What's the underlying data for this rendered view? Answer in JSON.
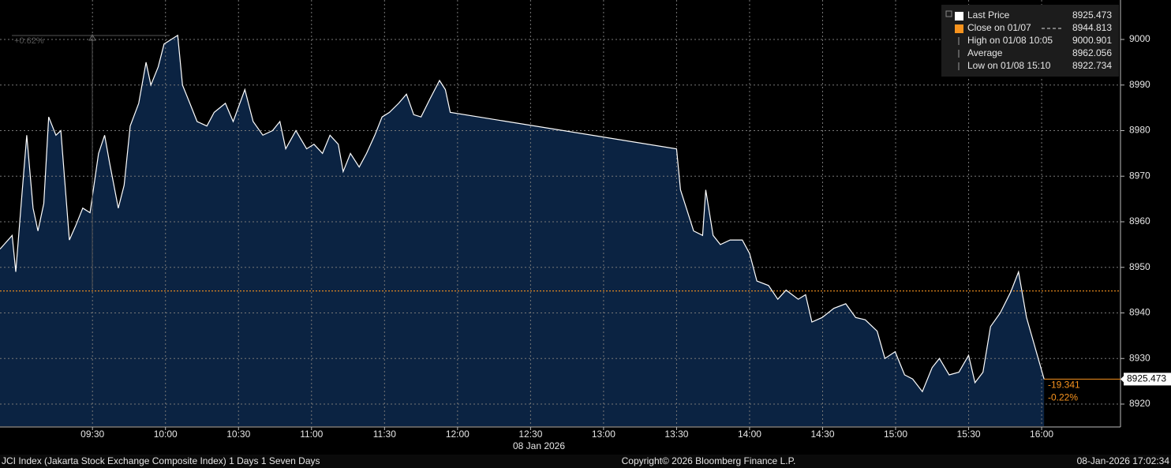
{
  "chart_data": {
    "type": "area",
    "annotation": "+0.62%",
    "date_label": "08 Jan 2026",
    "footer_left": "JCI Index (Jakarta Stock Exchange Composite Index) 1 Days 1 Seven Days",
    "footer_center": "Copyright© 2026 Bloomberg Finance L.P.",
    "footer_right": "08-Jan-2026 17:02:34",
    "xlim": [
      532,
      992.4
    ],
    "ylim": [
      8915.15,
      9008.66
    ],
    "xticks": [
      {
        "value": 570,
        "label": "09:30"
      },
      {
        "value": 600,
        "label": "10:00"
      },
      {
        "value": 630,
        "label": "10:30"
      },
      {
        "value": 660,
        "label": "11:00"
      },
      {
        "value": 690,
        "label": "11:30"
      },
      {
        "value": 720,
        "label": "12:00"
      },
      {
        "value": 750,
        "label": "12:30"
      },
      {
        "value": 780,
        "label": "13:00"
      },
      {
        "value": 810,
        "label": "13:30"
      },
      {
        "value": 840,
        "label": "14:00"
      },
      {
        "value": 870,
        "label": "14:30"
      },
      {
        "value": 900,
        "label": "15:00"
      },
      {
        "value": 930,
        "label": "15:30"
      },
      {
        "value": 960,
        "label": "16:00"
      }
    ],
    "yticks": [
      8920,
      8930,
      8940,
      8950,
      8960,
      8970,
      8980,
      8990,
      9000
    ],
    "grid": true,
    "series": [
      {
        "name": "Last Price",
        "color": "#ffffff",
        "fill": "#0b2342",
        "x": [
          532,
          537,
          538.5,
          541,
          543,
          545.6,
          547.6,
          550,
          552,
          555,
          557,
          560.5,
          563,
          566,
          569,
          572.5,
          575,
          577,
          580.6,
          583,
          585.5,
          589,
          592,
          594,
          597,
          599.4,
          605,
          607,
          610,
          613,
          617,
          620,
          624.6,
          627.8,
          632.6,
          636,
          640,
          644,
          647,
          649.4,
          653.6,
          658,
          661,
          664.5,
          667.6,
          671,
          673,
          676,
          679.6,
          682.6,
          686,
          689,
          692,
          695.8,
          699,
          702,
          705,
          708.7,
          712.6,
          715,
          717,
          810,
          811.6,
          814,
          817,
          820.7,
          822,
          825,
          828,
          832,
          837,
          840,
          843,
          847.8,
          851.6,
          855,
          860,
          863,
          865.6,
          869.8,
          874.6,
          879.5,
          883.6,
          887.5,
          892.4,
          895.6,
          899.8,
          903.7,
          907,
          911,
          915,
          918,
          922,
          926,
          930,
          932.6,
          935.9,
          939,
          943,
          947.3,
          950.5,
          953.8,
          961
        ],
        "values": [
          8954,
          8957,
          8949,
          8966,
          8979,
          8963,
          8958,
          8964,
          8983,
          8979,
          8980,
          8956,
          8959,
          8963,
          8962,
          8975,
          8979,
          8973,
          8963,
          8968,
          8981,
          8986,
          8995,
          8990,
          8994,
          8999,
          9000.901,
          8990,
          8986,
          8982,
          8981,
          8984,
          8986,
          8982,
          8989,
          8982,
          8979,
          8980,
          8982,
          8976,
          8980,
          8976,
          8977,
          8975,
          8979,
          8977,
          8971,
          8975,
          8972,
          8975,
          8979,
          8983,
          8984,
          8986,
          8988,
          8983.5,
          8983,
          8987,
          8991,
          8989,
          8984,
          8976,
          8967,
          8963,
          8958,
          8957,
          8967,
          8957,
          8955,
          8956,
          8956,
          8953,
          8947,
          8946,
          8943,
          8945,
          8943,
          8944,
          8938,
          8939,
          8941,
          8942,
          8939,
          8938.5,
          8936,
          8930,
          8931.5,
          8926.4,
          8925.5,
          8922.734,
          8928,
          8930,
          8926.4,
          8927,
          8930.7,
          8924.7,
          8927,
          8937,
          8940,
          8944.6,
          8949,
          8939,
          8925.473
        ]
      }
    ],
    "legend": [
      {
        "label": "Last Price",
        "value": 8925.473,
        "color": "#ffffff"
      },
      {
        "label": "Close on 01/07",
        "value": 8944.813,
        "color": "#f7931e"
      },
      {
        "label": "High on 01/08 10:05",
        "value": 9000.901,
        "color": "#9a9a9a"
      },
      {
        "label": "Average",
        "value": 8962.056,
        "color": "#9a9a9a"
      },
      {
        "label": "Low on 01/08 15:10",
        "value": 8922.734,
        "color": "#9a9a9a"
      }
    ],
    "change": -19.341,
    "change_pct": {
      "value": -0.22,
      "label": "-0.22%"
    },
    "change_color": "#f7931e"
  }
}
